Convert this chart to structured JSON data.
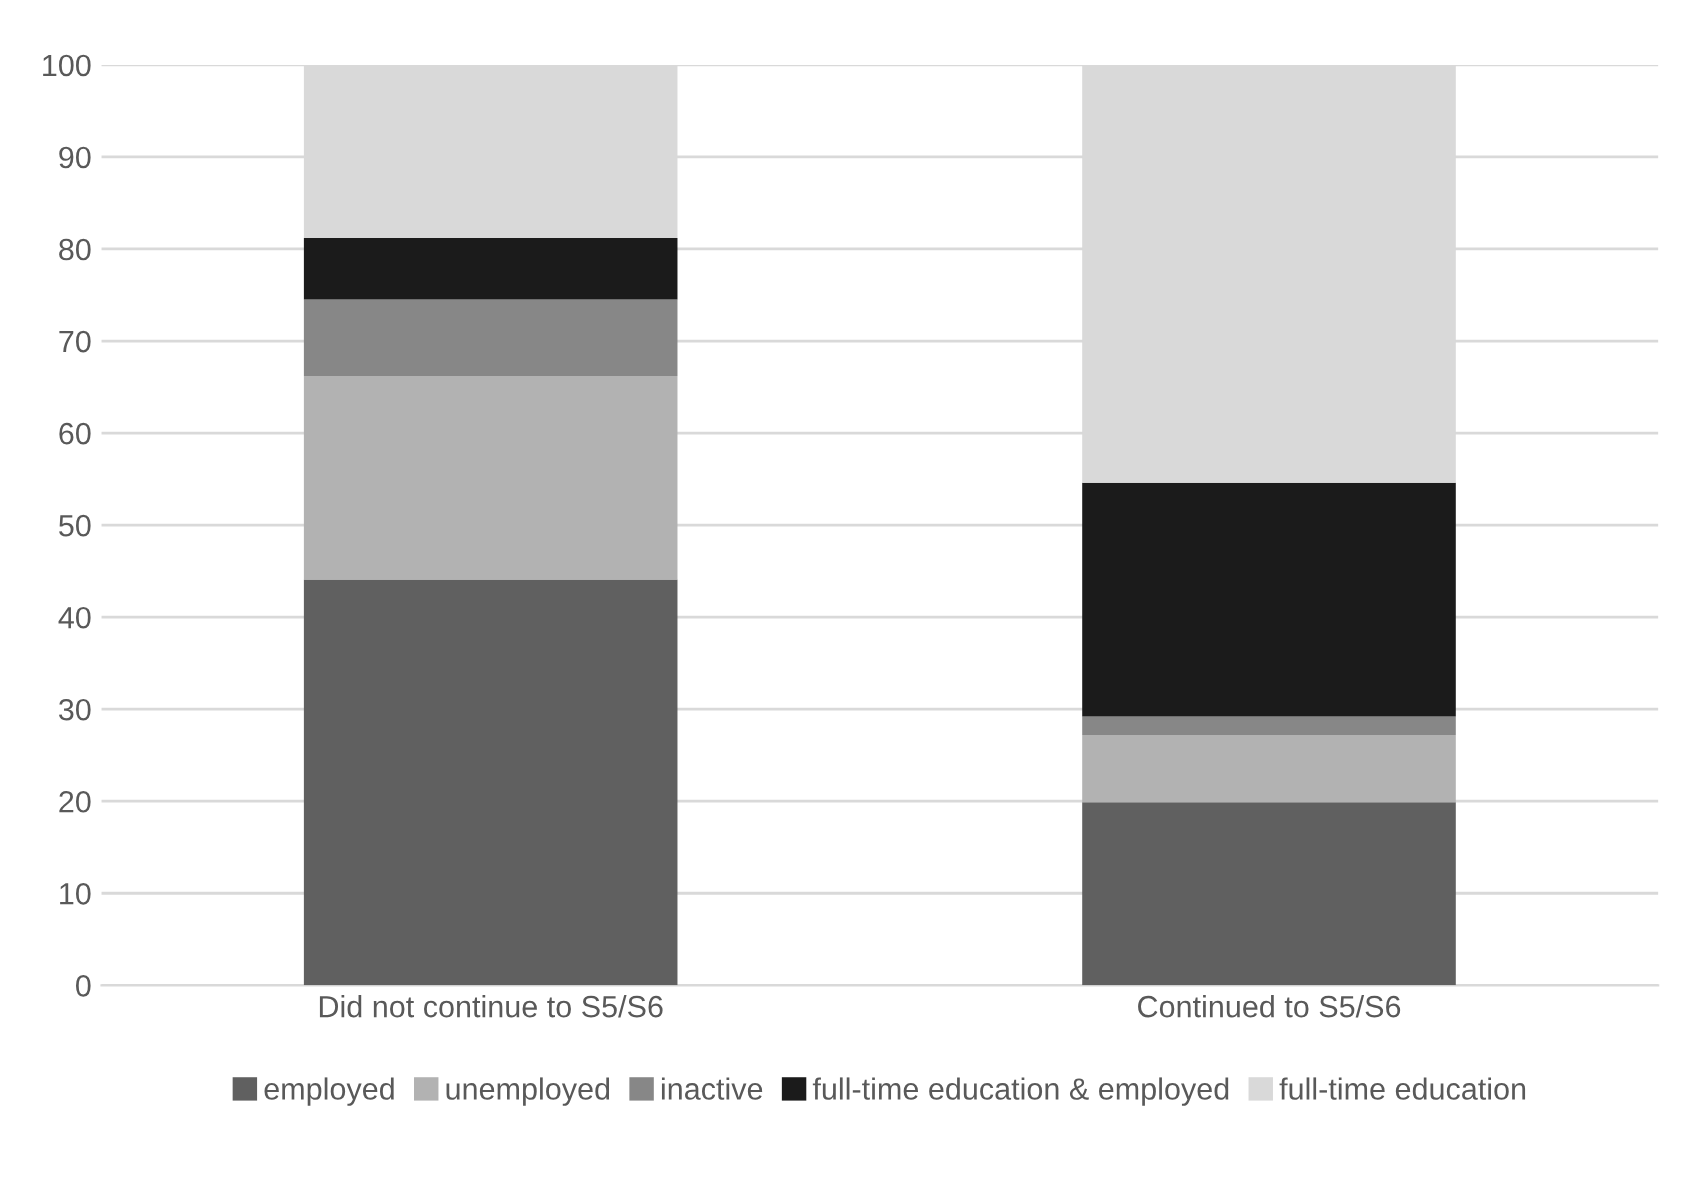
{
  "chart_data": {
    "type": "bar",
    "stacked": true,
    "categories": [
      "Did not continue to S5/S6",
      "Continued to S5/S6"
    ],
    "series": [
      {
        "name": "employed",
        "color": "#606060",
        "values": [
          44.1,
          19.9
        ]
      },
      {
        "name": "unemployed",
        "color": "#b2b2b2",
        "values": [
          22.1,
          7.3
        ]
      },
      {
        "name": "inactive",
        "color": "#878787",
        "values": [
          8.3,
          2.0
        ]
      },
      {
        "name": "full-time education & employed",
        "color": "#1b1b1b",
        "values": [
          6.7,
          25.4
        ]
      },
      {
        "name": "full-time education",
        "color": "#d9d9d9",
        "values": [
          18.8,
          45.4
        ]
      }
    ],
    "ylim": [
      0,
      100
    ],
    "yticks": [
      0,
      10,
      20,
      30,
      40,
      50,
      60,
      70,
      80,
      90,
      100
    ],
    "grid": "y",
    "legend": "bottom"
  }
}
